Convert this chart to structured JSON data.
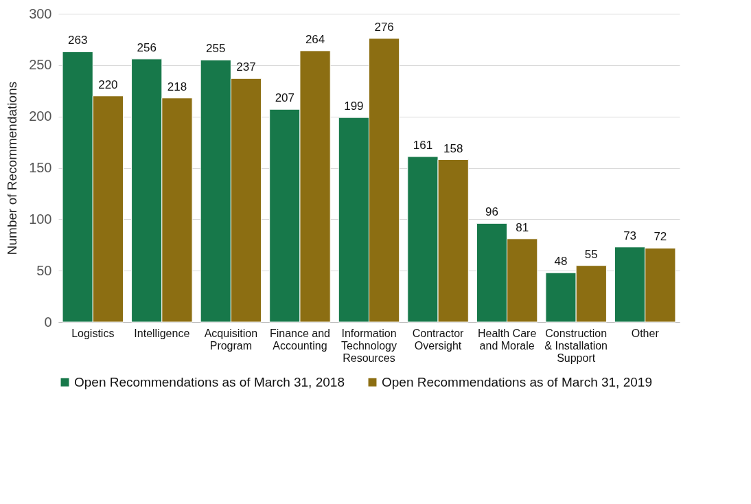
{
  "chart_data": {
    "type": "bar",
    "ylabel": "Number of Recommendations",
    "categories": [
      "Logistics",
      "Intelligence",
      "Acquisition Program",
      "Finance and Accounting",
      "Information Technology Resources",
      "Contractor Oversight",
      "Health Care and Morale",
      "Construction & Installation Support",
      "Other"
    ],
    "series": [
      {
        "name": "Open Recommendations as of March 31, 2018",
        "color": "#17784a",
        "values": [
          263,
          256,
          255,
          207,
          199,
          161,
          96,
          48,
          73
        ]
      },
      {
        "name": "Open Recommendations as of March 31, 2019",
        "color": "#8c6e12",
        "values": [
          220,
          218,
          237,
          264,
          276,
          158,
          81,
          55,
          72
        ]
      }
    ],
    "ylim": [
      0,
      300
    ],
    "yticks": [
      0,
      50,
      100,
      150,
      200,
      250,
      300
    ],
    "grid": "y",
    "legend": "bottom",
    "data_labels": true
  }
}
